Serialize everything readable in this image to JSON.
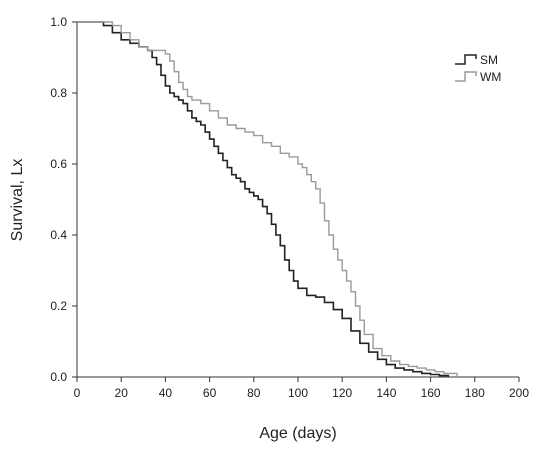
{
  "chart_data": {
    "type": "line",
    "subtype": "kaplan-meier survival step curves",
    "title": "",
    "xlabel": "Age (days)",
    "ylabel": "Survival, Lx",
    "xlim": [
      0,
      200
    ],
    "ylim": [
      0,
      1.0
    ],
    "xticks": [
      0,
      20,
      40,
      60,
      80,
      100,
      120,
      140,
      160,
      180,
      200
    ],
    "xtick_labels": [
      "0",
      "20",
      "40",
      "60",
      "80",
      "100",
      "120",
      "140",
      "160",
      "180",
      "200"
    ],
    "yticks": [
      0,
      0.2,
      0.4,
      0.6,
      0.8,
      1.0
    ],
    "ytick_labels": [
      "0.0",
      "0.2",
      "0.4",
      "0.6",
      "0.8",
      "1.0"
    ],
    "grid": false,
    "legend": {
      "position": "top-right",
      "entries": [
        "SM",
        "WM"
      ]
    },
    "series": [
      {
        "name": "SM",
        "color": "#222222",
        "x": [
          0,
          12,
          16,
          20,
          24,
          28,
          32,
          34,
          36,
          38,
          40,
          42,
          44,
          46,
          48,
          50,
          52,
          54,
          56,
          58,
          60,
          62,
          64,
          66,
          68,
          70,
          72,
          74,
          76,
          78,
          80,
          82,
          84,
          86,
          88,
          90,
          92,
          94,
          96,
          98,
          100,
          104,
          108,
          112,
          116,
          120,
          124,
          128,
          132,
          136,
          140,
          144,
          148,
          152,
          156,
          160,
          164,
          168
        ],
        "y": [
          1.0,
          0.99,
          0.97,
          0.95,
          0.94,
          0.93,
          0.92,
          0.9,
          0.88,
          0.85,
          0.82,
          0.8,
          0.79,
          0.78,
          0.77,
          0.75,
          0.73,
          0.72,
          0.71,
          0.69,
          0.67,
          0.65,
          0.63,
          0.61,
          0.59,
          0.57,
          0.56,
          0.55,
          0.53,
          0.52,
          0.51,
          0.5,
          0.48,
          0.46,
          0.43,
          0.4,
          0.37,
          0.33,
          0.3,
          0.27,
          0.25,
          0.23,
          0.225,
          0.21,
          0.19,
          0.165,
          0.13,
          0.095,
          0.07,
          0.05,
          0.035,
          0.025,
          0.02,
          0.015,
          0.01,
          0.007,
          0.004,
          0.0
        ]
      },
      {
        "name": "WM",
        "color": "#9a9a9a",
        "x": [
          0,
          12,
          16,
          20,
          24,
          28,
          32,
          36,
          40,
          42,
          44,
          46,
          48,
          50,
          52,
          56,
          60,
          64,
          68,
          72,
          76,
          80,
          84,
          88,
          92,
          96,
          100,
          102,
          104,
          106,
          108,
          110,
          112,
          114,
          116,
          118,
          120,
          122,
          124,
          126,
          128,
          130,
          134,
          138,
          142,
          146,
          150,
          154,
          158,
          162,
          166,
          172
        ],
        "y": [
          1.0,
          1.0,
          0.99,
          0.97,
          0.95,
          0.93,
          0.92,
          0.92,
          0.91,
          0.89,
          0.86,
          0.83,
          0.81,
          0.79,
          0.78,
          0.77,
          0.75,
          0.73,
          0.71,
          0.7,
          0.69,
          0.68,
          0.66,
          0.65,
          0.63,
          0.62,
          0.6,
          0.59,
          0.57,
          0.55,
          0.53,
          0.49,
          0.44,
          0.4,
          0.36,
          0.33,
          0.3,
          0.27,
          0.24,
          0.2,
          0.16,
          0.12,
          0.08,
          0.06,
          0.045,
          0.035,
          0.03,
          0.025,
          0.02,
          0.015,
          0.01,
          0.0
        ]
      }
    ]
  }
}
